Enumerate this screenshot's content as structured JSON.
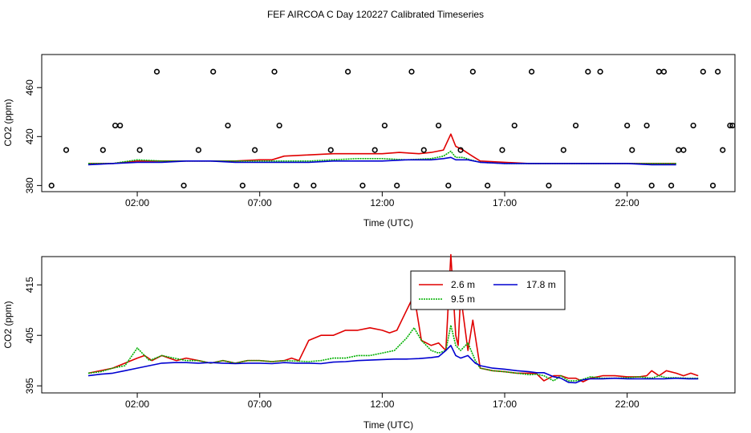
{
  "title": "FEF  AIRCOA C  Day 120227  Calibrated Timeseries",
  "chart_data": [
    {
      "type": "line",
      "xlabel": "Time (UTC)",
      "ylabel": "CO2 (ppm)",
      "xlim": [
        -1.9,
        26.4
      ],
      "ylim": [
        375,
        487
      ],
      "grid": false,
      "xticks": [
        {
          "value": 2,
          "label": "02:00"
        },
        {
          "value": 7,
          "label": "07:00"
        },
        {
          "value": 12,
          "label": "12:00"
        },
        {
          "value": 17,
          "label": "17:00"
        },
        {
          "value": 22,
          "label": "22:00"
        }
      ],
      "yticks": [
        {
          "value": 380,
          "label": "380"
        },
        {
          "value": 420,
          "label": "420"
        },
        {
          "value": 460,
          "label": "460"
        }
      ],
      "series": [
        {
          "color": "#e00000",
          "x": [
            0,
            1,
            2,
            3,
            4,
            5,
            6,
            7,
            7.5,
            8,
            9,
            10,
            11,
            12,
            12.7,
            13.5,
            14,
            14.5,
            14.8,
            15,
            15.3,
            15.6,
            16,
            17,
            18,
            19,
            20,
            21,
            22,
            23,
            24
          ],
          "y": [
            398,
            398,
            400,
            400,
            400,
            400,
            400,
            401,
            401,
            404,
            405,
            406,
            406,
            406,
            407,
            406,
            407,
            409,
            422,
            412,
            409,
            405,
            400,
            399,
            398,
            398,
            398,
            398,
            398,
            398,
            398
          ]
        },
        {
          "color": "#00b000",
          "x": [
            0,
            1,
            2,
            3,
            4,
            5,
            6,
            7,
            8,
            9,
            10,
            11,
            12,
            13,
            14,
            14.5,
            14.8,
            15,
            15.3,
            15.6,
            16,
            17,
            18,
            19,
            20,
            21,
            22,
            23,
            24
          ],
          "y": [
            398,
            398,
            401,
            400,
            400,
            400,
            400,
            400,
            400,
            400,
            401,
            402,
            402,
            401,
            402,
            404,
            408,
            403,
            403,
            401,
            399,
            398,
            398,
            398,
            398,
            398,
            398,
            398,
            398
          ]
        },
        {
          "color": "#0000d0",
          "x": [
            0,
            1,
            2,
            3,
            4,
            5,
            6,
            7,
            8,
            9,
            10,
            11,
            12,
            13,
            14,
            14.5,
            14.8,
            15,
            15.5,
            16,
            17,
            18,
            19,
            20,
            21,
            22,
            23,
            24
          ],
          "y": [
            397,
            398,
            399,
            399,
            400,
            400,
            399,
            399,
            399,
            399,
            400,
            400,
            400,
            401,
            401,
            402,
            403,
            401,
            401,
            399,
            398,
            398,
            398,
            398,
            398,
            398,
            397,
            397
          ]
        }
      ],
      "markers": {
        "x": [
          -1.5,
          0.6,
          1.1,
          2.1,
          -0.9,
          1.3,
          2.8,
          3.9,
          4.5,
          5.1,
          5.7,
          6.3,
          6.8,
          7.6,
          7.8,
          8.5,
          9.2,
          9.9,
          10.6,
          11.2,
          11.7,
          12.1,
          12.6,
          13.2,
          13.7,
          14.3,
          14.7,
          15.2,
          15.7,
          16.3,
          16.9,
          17.4,
          18.1,
          18.8,
          19.4,
          19.9,
          20.4,
          20.9,
          21.6,
          22.2,
          22.8,
          23.3,
          23.8,
          24.3,
          24.7,
          25.1,
          25.5,
          25.9,
          26.2,
          23.5,
          24.1,
          26.3,
          25.7,
          23.0,
          22.0
        ],
        "y": [
          380,
          409,
          429,
          409,
          409,
          429,
          473,
          380,
          409,
          473,
          429,
          380,
          409,
          473,
          429,
          380,
          380,
          409,
          473,
          380,
          409,
          429,
          380,
          473,
          409,
          429,
          380,
          409,
          473,
          380,
          409,
          429,
          473,
          380,
          409,
          429,
          473,
          473,
          380,
          409,
          429,
          473,
          380,
          409,
          429,
          473,
          380,
          409,
          429,
          473,
          409,
          429,
          473,
          380,
          429
        ]
      }
    },
    {
      "type": "line",
      "xlabel": "Time (UTC)",
      "ylabel": "CO2 (ppm)",
      "xlim": [
        -1.9,
        26.4
      ],
      "ylim": [
        393.6,
        420.6
      ],
      "grid": false,
      "legend": "top-center",
      "xticks": [
        {
          "value": 2,
          "label": "02:00"
        },
        {
          "value": 7,
          "label": "07:00"
        },
        {
          "value": 12,
          "label": "12:00"
        },
        {
          "value": 17,
          "label": "17:00"
        },
        {
          "value": 22,
          "label": "22:00"
        }
      ],
      "yticks": [
        {
          "value": 395,
          "label": "395"
        },
        {
          "value": 405,
          "label": "405"
        },
        {
          "value": 415,
          "label": "415"
        }
      ],
      "series": [
        {
          "name": "2.6 m",
          "color": "#e00000",
          "x": [
            0,
            0.5,
            1,
            1.5,
            2,
            2.3,
            2.6,
            3,
            3.3,
            3.6,
            4,
            4.5,
            5,
            5.5,
            6,
            6.5,
            7,
            7.5,
            8,
            8.3,
            8.6,
            9,
            9.5,
            10,
            10.5,
            11,
            11.5,
            12,
            12.3,
            12.6,
            13,
            13.3,
            13.6,
            14,
            14.3,
            14.6,
            14.8,
            15,
            15.1,
            15.2,
            15.5,
            15.7,
            16,
            16.5,
            17,
            17.5,
            18,
            18.3,
            18.6,
            19,
            19.3,
            19.6,
            19.9,
            20.2,
            20.5,
            21,
            21.5,
            22,
            22.5,
            22.8,
            23,
            23.3,
            23.6,
            24,
            24.3,
            24.6,
            24.9
          ],
          "y": [
            397.5,
            398,
            398.5,
            399.5,
            400.5,
            401,
            400,
            401,
            400.5,
            400,
            400.5,
            400,
            399.5,
            400,
            399.5,
            400,
            400,
            399.8,
            400,
            400.5,
            400,
            404,
            405,
            405,
            406,
            406,
            406.5,
            406,
            405.5,
            406,
            410,
            413,
            404,
            403,
            403.5,
            402,
            421,
            405,
            403,
            413,
            402,
            408,
            398.5,
            398,
            397.8,
            397.5,
            397.5,
            397.4,
            396,
            397,
            397,
            396.5,
            396.5,
            395.8,
            396.5,
            397,
            397,
            396.8,
            396.8,
            397,
            398,
            397,
            398,
            397.5,
            397,
            397.5,
            397
          ]
        },
        {
          "name": "9.5 m",
          "color": "#00b000",
          "x": [
            0,
            0.5,
            1,
            1.5,
            2,
            2.5,
            3,
            3.5,
            4,
            4.5,
            5,
            5.5,
            6,
            6.5,
            7,
            7.5,
            8,
            8.5,
            9,
            9.5,
            10,
            10.5,
            11,
            11.5,
            12,
            12.5,
            13,
            13.3,
            13.6,
            14,
            14.3,
            14.6,
            14.8,
            15,
            15.2,
            15.5,
            15.8,
            16,
            16.5,
            17,
            17.5,
            18,
            18.3,
            18.6,
            19,
            19.3,
            19.6,
            19.9,
            20.2,
            20.5,
            21,
            21.5,
            22,
            22.5,
            23,
            23.3,
            23.6,
            24,
            24.5,
            24.9
          ],
          "y": [
            397.5,
            397.8,
            398.5,
            399,
            402.5,
            400,
            401,
            400.5,
            400,
            400,
            399.5,
            400,
            399.5,
            400,
            400,
            399.8,
            400,
            399.9,
            399.8,
            400,
            400.5,
            400.5,
            401,
            401,
            401.5,
            402,
            404.5,
            406.5,
            404,
            402,
            401.5,
            402,
            407,
            403,
            402,
            403.5,
            400,
            398.5,
            398,
            397.8,
            397.5,
            397.2,
            397.3,
            397,
            396,
            397,
            396,
            396,
            396.3,
            396.8,
            396.5,
            396.5,
            396.6,
            396.8,
            396.5,
            397,
            396.6,
            396.6,
            396.5,
            396.5
          ]
        },
        {
          "name": "17.8 m",
          "color": "#0000d0",
          "x": [
            0,
            0.5,
            1,
            1.5,
            2,
            2.5,
            3,
            3.5,
            4,
            4.5,
            5,
            5.5,
            6,
            6.5,
            7,
            7.5,
            8,
            8.5,
            9,
            9.5,
            10,
            10.5,
            11,
            11.5,
            12,
            12.5,
            13,
            13.5,
            14,
            14.3,
            14.6,
            14.8,
            15,
            15.2,
            15.5,
            15.8,
            16,
            16.5,
            17,
            17.5,
            18,
            18.3,
            18.6,
            19,
            19.3,
            19.6,
            19.9,
            20.2,
            20.5,
            21,
            21.5,
            22,
            22.5,
            23,
            23.5,
            24,
            24.5,
            24.9
          ],
          "y": [
            397,
            397.3,
            397.5,
            398,
            398.5,
            399,
            399.5,
            399.6,
            399.6,
            399.5,
            399.6,
            399.5,
            399.4,
            399.5,
            399.5,
            399.4,
            399.6,
            399.5,
            399.5,
            399.4,
            399.7,
            399.8,
            400,
            400.1,
            400.2,
            400.3,
            400.3,
            400.4,
            400.6,
            400.8,
            402,
            403,
            401,
            400.5,
            401,
            399.5,
            399,
            398.5,
            398.3,
            398,
            397.8,
            397.6,
            397.6,
            396.8,
            396.5,
            395.7,
            395.6,
            396.2,
            396.4,
            396.4,
            396.5,
            396.4,
            396.4,
            396.4,
            396.4,
            396.5,
            396.4,
            396.4
          ]
        }
      ]
    }
  ]
}
